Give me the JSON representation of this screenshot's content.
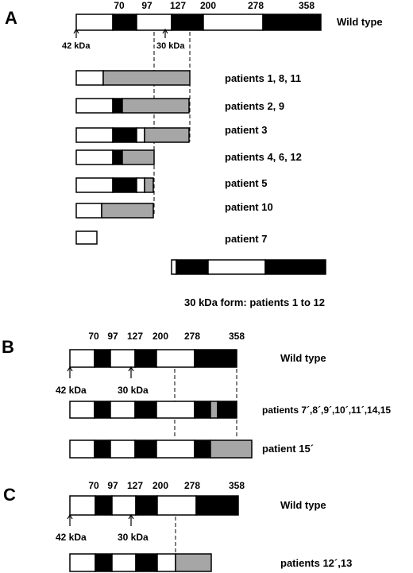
{
  "panels": [
    {
      "letter": "A",
      "scale_labels": [
        "70",
        "97",
        "127",
        "200",
        "278",
        "358"
      ],
      "wild_type_label": "Wild type",
      "marker_42": "42  kDa",
      "marker_30": "30  kDa",
      "rows": [
        {
          "label": "patients  1,  8,  11"
        },
        {
          "label": "patients  2,  9"
        },
        {
          "label": "patient  3"
        },
        {
          "label": "patients  4,  6,  12"
        },
        {
          "label": "patient  5"
        },
        {
          "label": "patient  10"
        },
        {
          "label": "patient  7"
        }
      ],
      "form_label": "30  kDa form:  patients  1 to  12"
    },
    {
      "letter": "B",
      "scale_labels": [
        "70",
        "97",
        "127",
        "200",
        "278",
        "358"
      ],
      "wild_type_label": "Wild type",
      "marker_42": "42  kDa",
      "marker_30": "30  kDa",
      "rows": [
        {
          "label": "patients  7´,8´,9´,10´,11´,14,15"
        },
        {
          "label": "patient  15´"
        }
      ]
    },
    {
      "letter": "C",
      "scale_labels": [
        "70",
        "97",
        "127",
        "200",
        "278",
        "358"
      ],
      "wild_type_label": "Wild type",
      "marker_42": "42  kDa",
      "marker_30": "30  kDa",
      "rows": [
        {
          "label": "patients  12´,13"
        }
      ]
    }
  ],
  "colors": {
    "exon": "#000000",
    "intron": "#ffffff",
    "aberrant": "#a6a6a6",
    "outline": "#000000"
  }
}
